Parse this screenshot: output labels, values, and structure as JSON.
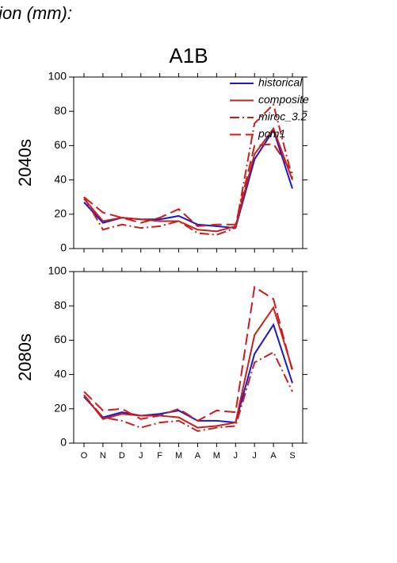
{
  "page_title": "tion (mm):",
  "chart_data": [
    {
      "type": "line",
      "title": "A1B",
      "ylabel": "2040s",
      "legend": "upper right",
      "ylim": [
        0,
        100
      ],
      "yticks": [
        0,
        20,
        40,
        60,
        80,
        100
      ],
      "series": [
        {
          "name": "historical",
          "color": "#1a1ac8",
          "dash": "solid",
          "values": [
            27,
            15,
            18,
            17,
            17,
            19,
            14,
            13,
            12,
            52,
            69,
            35
          ]
        },
        {
          "name": "composite",
          "color": "#c81e1e",
          "dash": "solid",
          "values": [
            29,
            16,
            18,
            17,
            16,
            16,
            11,
            10,
            13,
            55,
            70,
            40
          ]
        },
        {
          "name": "miroc_3.2",
          "color": "#c81e1e",
          "dash": "dashdot",
          "values": [
            30,
            11,
            14,
            12,
            13,
            16,
            9,
            8,
            12,
            73,
            84,
            41
          ]
        },
        {
          "name": "pcm1",
          "color": "#c81e1e",
          "dash": "longdash",
          "values": [
            30,
            21,
            18,
            15,
            18,
            23,
            13,
            14,
            14,
            60,
            61,
            44
          ]
        }
      ]
    },
    {
      "type": "line",
      "ylabel": "2080s",
      "categories": [
        "O",
        "N",
        "D",
        "J",
        "F",
        "M",
        "A",
        "M",
        "J",
        "J",
        "A",
        "S"
      ],
      "ylim": [
        0,
        100
      ],
      "yticks": [
        0,
        20,
        40,
        60,
        80,
        100
      ],
      "series": [
        {
          "color": "#1a1ac8",
          "dash": "solid",
          "values": [
            27,
            15,
            18,
            16,
            17,
            19,
            13,
            13,
            12,
            52,
            69,
            35
          ]
        },
        {
          "color": "#c81e1e",
          "dash": "solid",
          "values": [
            28,
            14,
            17,
            16,
            16,
            15,
            9,
            10,
            12,
            63,
            79,
            43
          ]
        },
        {
          "color": "#c81e1e",
          "dash": "dashdot",
          "values": [
            28,
            15,
            13,
            9,
            12,
            13,
            7,
            9,
            10,
            47,
            53,
            30
          ]
        },
        {
          "color": "#c81e1e",
          "dash": "longdash",
          "values": [
            30,
            19,
            20,
            14,
            16,
            20,
            13,
            19,
            18,
            91,
            84,
            42
          ]
        }
      ]
    }
  ]
}
